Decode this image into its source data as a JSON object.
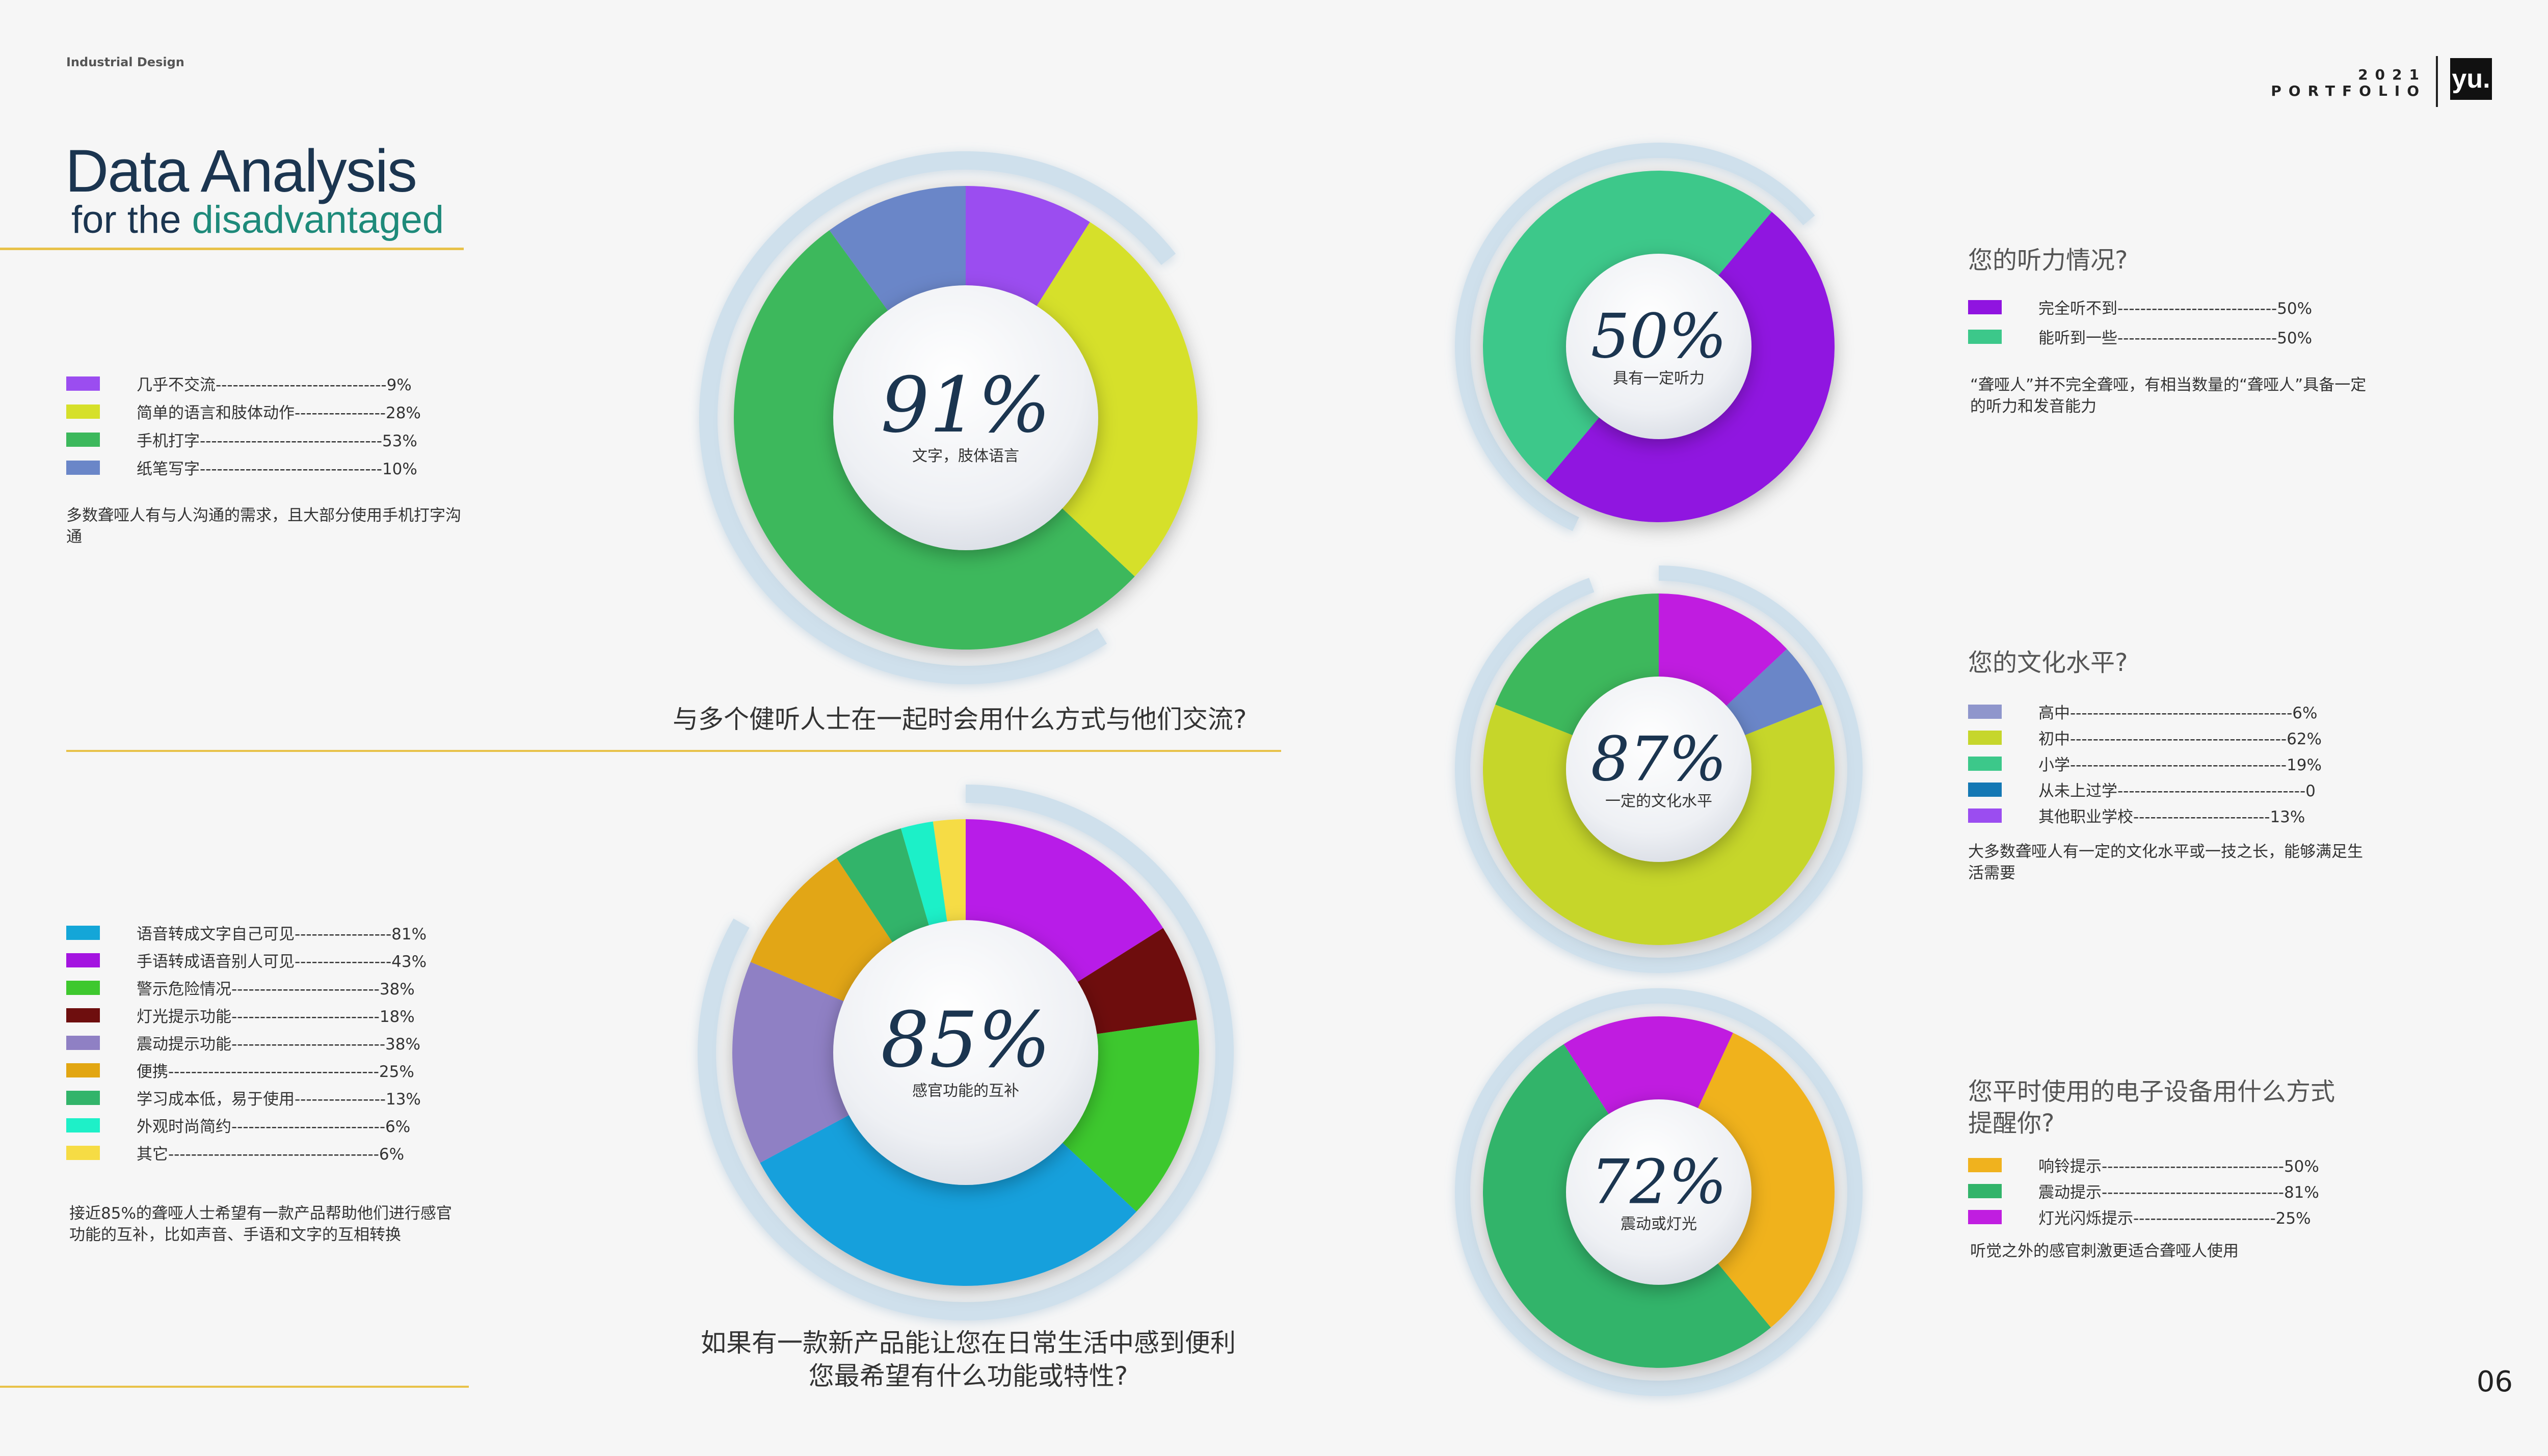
{
  "header": {
    "doc_label": "Industrial Design",
    "title_main": "Data Analysis",
    "title_sub_prefix": "for the ",
    "title_sub_accent": "disadvantaged",
    "brand_year": "2021",
    "brand_word": "PORTFOLIO",
    "brand_logo": "yu."
  },
  "page_number": "06",
  "colors": {
    "rule": "#e8c24a",
    "title": "#1b3550",
    "accent": "#1e8a7a",
    "ring": "#cfe0ec"
  },
  "chart_data": [
    {
      "id": "comm",
      "type": "pie",
      "title": "与多个健听人士在一起时会用什么方式与他们交流?",
      "center_value": "91%",
      "center_caption": "文字，肢体语言",
      "legend": [
        {
          "label": "几乎不交流",
          "text": "几乎不交流------------------------------9%",
          "value": 9,
          "color": "#9b4df0"
        },
        {
          "label": "简单的语言和肢体动作",
          "text": "简单的语言和肢体动作----------------28%",
          "value": 28,
          "color": "#d6e02a"
        },
        {
          "label": "手机打字",
          "text": "手机打字--------------------------------53%",
          "value": 53,
          "color": "#3cb85c"
        },
        {
          "label": "纸笔写字",
          "text": "纸笔写字--------------------------------10%",
          "value": 10,
          "color": "#6a86c8"
        }
      ],
      "note": "多数聋哑人有与人沟通的需求，且大部分使用手机打字沟通"
    },
    {
      "id": "function",
      "type": "pie",
      "title_lines": [
        "如果有一款新产品能让您在日常生活中感到便利",
        "您最希望有什么功能或特性?"
      ],
      "center_value": "85%",
      "center_caption": "感官功能的互补",
      "legend": [
        {
          "label": "语音转成文字自己可见",
          "text": "语音转成文字自己可见-----------------81%",
          "value": 81,
          "color": "#14a6d8"
        },
        {
          "label": "手语转成语音别人可见",
          "text": "手语转成语音别人可见-----------------43%",
          "value": 43,
          "color": "#a414e0"
        },
        {
          "label": "警示危险情况",
          "text": "警示危险情况--------------------------38%",
          "value": 38,
          "color": "#3ec82e"
        },
        {
          "label": "灯光提示功能",
          "text": "灯光提示功能--------------------------18%",
          "value": 18,
          "color": "#6e0e0e"
        },
        {
          "label": "震动提示功能",
          "text": "震动提示功能---------------------------38%",
          "value": 38,
          "color": "#8f80c4"
        },
        {
          "label": "便携",
          "text": "便携-------------------------------------25%",
          "value": 25,
          "color": "#e2a612"
        },
        {
          "label": "学习成本低，易于使用",
          "text": "学习成本低，易于使用----------------13%",
          "value": 13,
          "color": "#32b46a"
        },
        {
          "label": "外观时尚简约",
          "text": "外观时尚简约---------------------------6%",
          "value": 6,
          "color": "#1ef0c8"
        },
        {
          "label": "其它",
          "text": "其它-------------------------------------6%",
          "value": 6,
          "color": "#f6dc44"
        }
      ],
      "slices": [
        {
          "label": "手语转成语音别人可见",
          "value": 43,
          "color": "#b81ee8"
        },
        {
          "label": "灯光提示功能",
          "value": 18,
          "color": "#6e0e0e"
        },
        {
          "label": "警示危险情况",
          "value": 38,
          "color": "#3ec82e"
        },
        {
          "label": "语音转成文字自己可见",
          "value": 81,
          "color": "#18a0dc"
        },
        {
          "label": "震动提示功能",
          "value": 38,
          "color": "#8f80c4"
        },
        {
          "label": "便携",
          "value": 25,
          "color": "#e2a612"
        },
        {
          "label": "学习成本低，易于使用",
          "value": 13,
          "color": "#32b46a"
        },
        {
          "label": "外观时尚简约",
          "value": 6,
          "color": "#1ef0c8"
        },
        {
          "label": "其它",
          "value": 6,
          "color": "#f6dc44"
        }
      ],
      "note": "接近85%的聋哑人士希望有一款产品帮助他们进行感官功能的互补，比如声音、手语和文字的互相转换"
    },
    {
      "id": "hearing",
      "type": "pie",
      "title": "您的听力情况?",
      "center_value": "50%",
      "center_caption": "具有一定听力",
      "legend": [
        {
          "label": "完全听不到",
          "text": "完全听不到----------------------------50%",
          "value": 50,
          "color": "#9014e0"
        },
        {
          "label": "能听到一些",
          "text": "能听到一些----------------------------50%",
          "value": 50,
          "color": "#3cc88a"
        }
      ],
      "note": "“聋哑人”并不完全聋哑，有相当数量的“聋哑人”具备一定的听力和发音能力"
    },
    {
      "id": "education",
      "type": "pie",
      "title": "您的文化水平?",
      "center_value": "87%",
      "center_caption": "一定的文化水平",
      "legend": [
        {
          "label": "高中",
          "text": "高中---------------------------------------6%",
          "value": 6,
          "color": "#8f96cc"
        },
        {
          "label": "初中",
          "text": "初中--------------------------------------62%",
          "value": 62,
          "color": "#c6d62c"
        },
        {
          "label": "小学",
          "text": "小学--------------------------------------19%",
          "value": 19,
          "color": "#3cc88a"
        },
        {
          "label": "从未上过学",
          "text": "从未上过学---------------------------------0",
          "value": 0,
          "color": "#1478b4"
        },
        {
          "label": "其他职业学校",
          "text": "其他职业学校------------------------13%",
          "value": 13,
          "color": "#9b4df0"
        }
      ],
      "slices": [
        {
          "label": "其他职业学校",
          "value": 13,
          "color": "#c01ee0"
        },
        {
          "label": "高中",
          "value": 6,
          "color": "#6a86c8"
        },
        {
          "label": "初中",
          "value": 62,
          "color": "#c6d62c"
        },
        {
          "label": "小学",
          "value": 19,
          "color": "#3cb85c"
        }
      ],
      "note": "大多数聋哑人有一定的文化水平或一技之长，能够满足生活需要"
    },
    {
      "id": "reminder",
      "type": "pie",
      "title_lines": [
        "您平时使用的电子设备用什么方式",
        "提醒你?"
      ],
      "center_value": "72%",
      "center_caption": "震动或灯光",
      "legend": [
        {
          "label": "响铃提示",
          "text": "响铃提示--------------------------------50%",
          "value": 50,
          "color": "#f0b21e"
        },
        {
          "label": "震动提示",
          "text": "震动提示--------------------------------81%",
          "value": 81,
          "color": "#32b46a"
        },
        {
          "label": "灯光闪烁提示",
          "text": "灯光闪烁提示-------------------------25%",
          "value": 25,
          "color": "#c01ee0"
        }
      ],
      "note": "听觉之外的感官刺激更适合聋哑人使用"
    }
  ]
}
